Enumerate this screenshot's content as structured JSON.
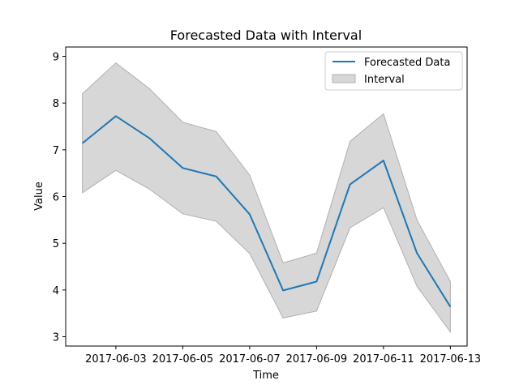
{
  "chart_data": {
    "type": "line",
    "title": "Forecasted Data with Interval",
    "xlabel": "Time",
    "ylabel": "Value",
    "x": [
      "2017-06-02",
      "2017-06-03",
      "2017-06-04",
      "2017-06-05",
      "2017-06-06",
      "2017-06-07",
      "2017-06-08",
      "2017-06-09",
      "2017-06-10",
      "2017-06-11",
      "2017-06-12",
      "2017-06-13"
    ],
    "x_ticks": [
      "2017-06-03",
      "2017-06-05",
      "2017-06-07",
      "2017-06-09",
      "2017-06-11",
      "2017-06-13"
    ],
    "y_ticks": [
      3,
      4,
      5,
      6,
      7,
      8,
      9
    ],
    "xlim": [
      "2017-06-01T12:00",
      "2017-06-13T12:00"
    ],
    "ylim": [
      2.8,
      9.2
    ],
    "grid": false,
    "legend_position": "top-right",
    "series": [
      {
        "name": "Forecasted Data",
        "kind": "line",
        "color": "#1f77b4",
        "values": [
          7.14,
          7.72,
          7.25,
          6.61,
          6.43,
          5.62,
          3.99,
          4.18,
          6.26,
          6.77,
          4.79,
          3.64
        ]
      },
      {
        "name": "Interval",
        "kind": "band",
        "color": "#b0b0b0",
        "lower": [
          6.08,
          6.56,
          6.16,
          5.63,
          5.47,
          4.78,
          3.4,
          3.55,
          5.33,
          5.76,
          4.08,
          3.1
        ],
        "upper": [
          8.2,
          8.86,
          8.31,
          7.59,
          7.39,
          6.46,
          4.58,
          4.79,
          7.18,
          7.77,
          5.5,
          4.18
        ]
      }
    ]
  }
}
